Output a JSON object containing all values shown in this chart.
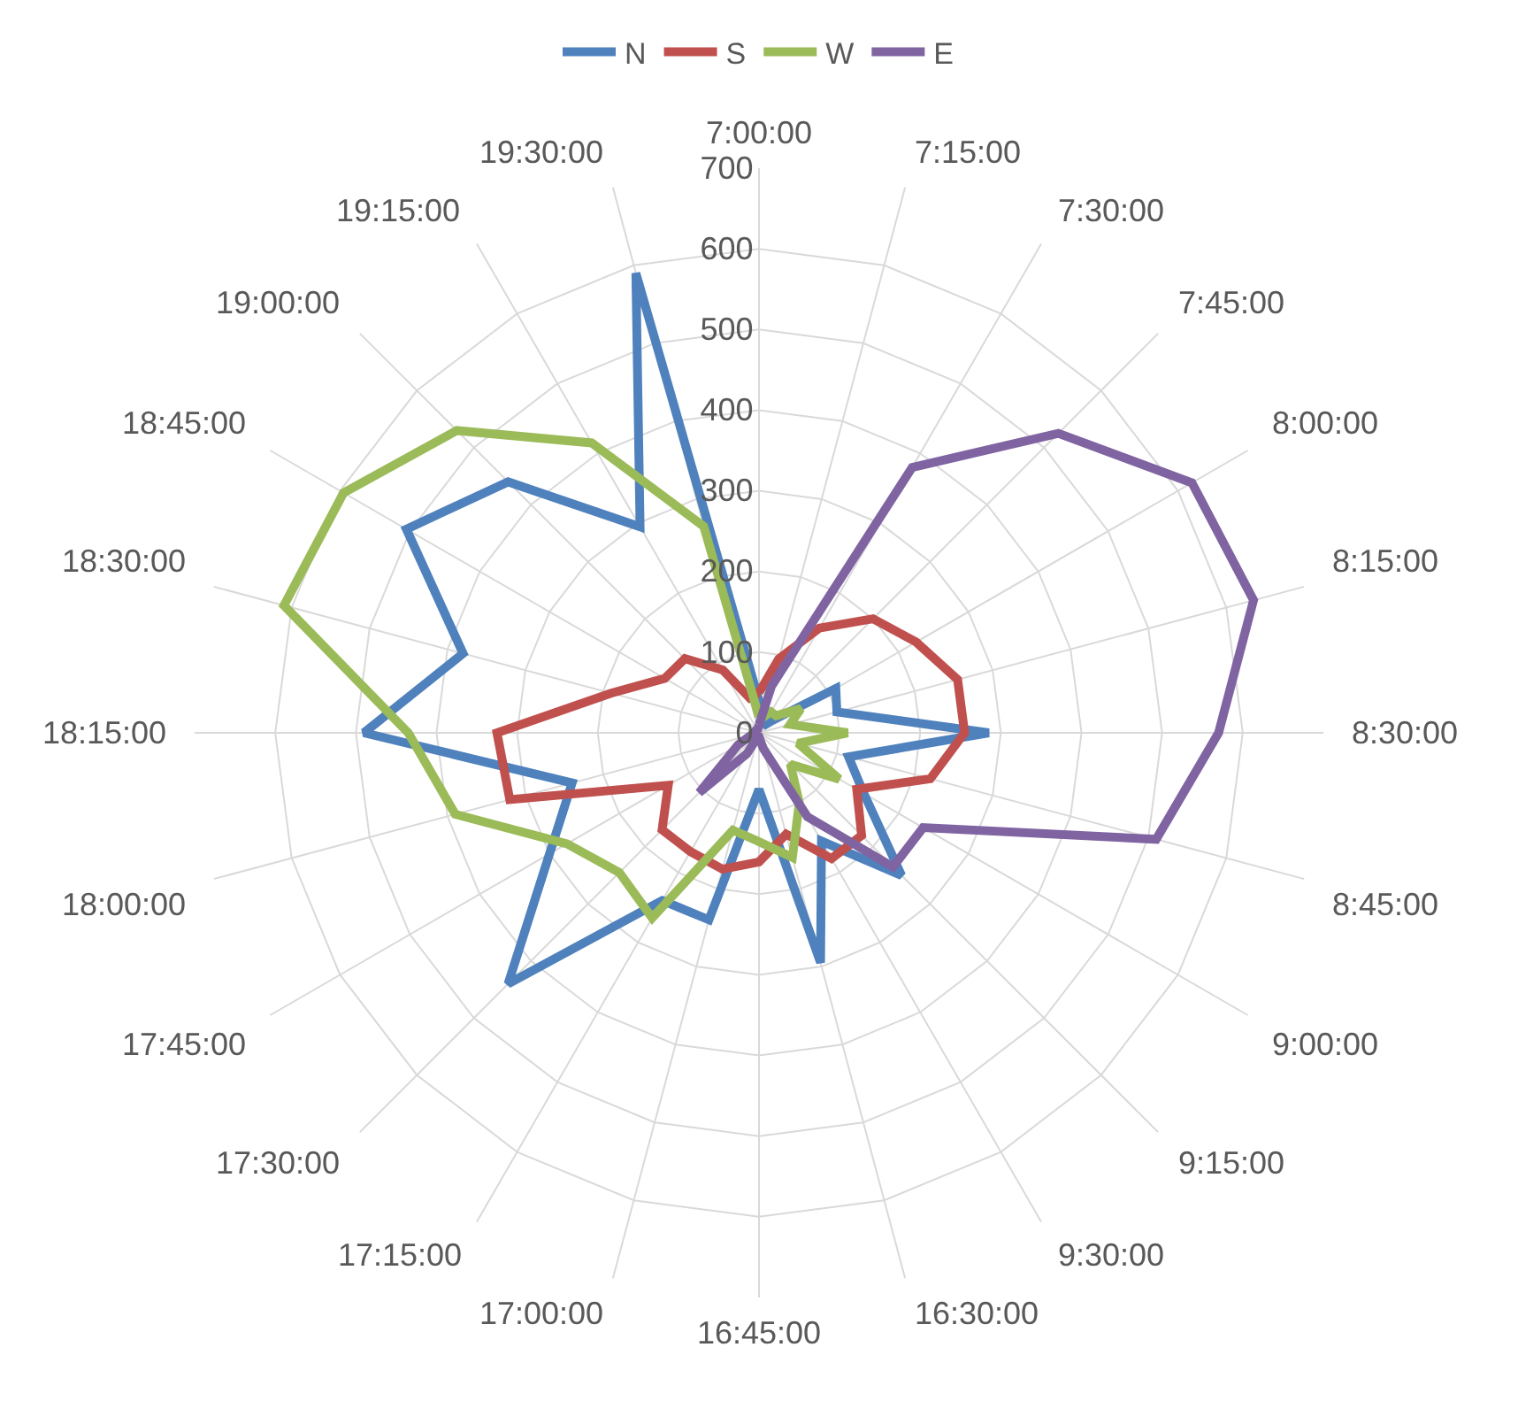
{
  "chart_data": {
    "type": "radar",
    "categories": [
      "7:00:00",
      "7:15:00",
      "7:30:00",
      "7:45:00",
      "8:00:00",
      "8:15:00",
      "8:30:00",
      "8:45:00",
      "9:00:00",
      "9:15:00",
      "9:30:00",
      "16:30:00",
      "16:45:00",
      "17:00:00",
      "17:15:00",
      "17:30:00",
      "17:45:00",
      "18:00:00",
      "18:15:00",
      "18:30:00",
      "18:45:00",
      "19:00:00",
      "19:15:00",
      "19:30:00"
    ],
    "series": [
      {
        "name": "N",
        "color": "#4f81bd",
        "values": [
          40,
          30,
          10,
          20,
          110,
          100,
          285,
          115,
          150,
          250,
          155,
          295,
          70,
          240,
          240,
          440,
          300,
          240,
          490,
          380,
          505,
          440,
          295,
          590
        ]
      },
      {
        "name": "S",
        "color": "#c0504d",
        "values": [
          50,
          95,
          150,
          200,
          225,
          255,
          255,
          220,
          140,
          180,
          180,
          130,
          160,
          175,
          170,
          170,
          130,
          320,
          325,
          190,
          135,
          130,
          90,
          45
        ]
      },
      {
        "name": "W",
        "color": "#9bbb59",
        "values": [
          20,
          20,
          30,
          30,
          60,
          40,
          110,
          50,
          115,
          55,
          100,
          160,
          135,
          125,
          265,
          245,
          275,
          390,
          435,
          610,
          595,
          530,
          415,
          265
        ]
      },
      {
        "name": "E",
        "color": "#8064a2",
        "values": [
          10,
          60,
          380,
          525,
          620,
          635,
          570,
          510,
          235,
          235,
          120,
          20,
          5,
          5,
          30,
          105,
          30,
          10,
          5,
          5,
          5,
          5,
          5,
          5
        ]
      }
    ],
    "ylim": [
      0,
      700
    ],
    "yticks": [
      0,
      100,
      200,
      300,
      400,
      500,
      600,
      700
    ],
    "grid": true,
    "legend": "top",
    "marker": "none",
    "line_style": "solid"
  }
}
